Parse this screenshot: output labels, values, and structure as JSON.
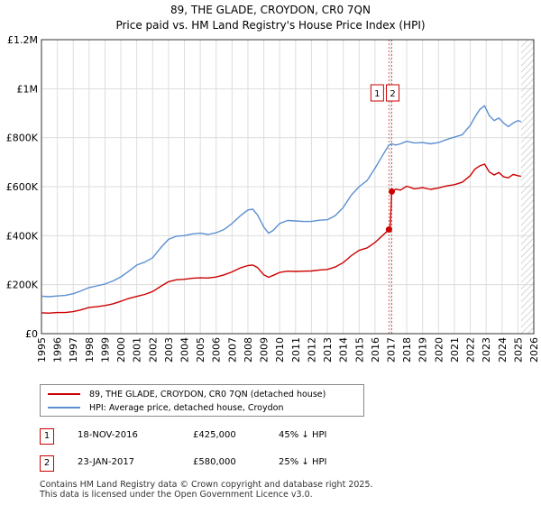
{
  "chart_data": {
    "type": "line",
    "title": "89, THE GLADE, CROYDON, CR0 7QN",
    "subtitle": "Price paid vs. HM Land Registry's House Price Index (HPI)",
    "xlim": [
      1995,
      2026
    ],
    "ylim": [
      0,
      1200000
    ],
    "x_ticks": [
      1995,
      1996,
      1997,
      1998,
      1999,
      2000,
      2001,
      2002,
      2003,
      2004,
      2005,
      2006,
      2007,
      2008,
      2009,
      2010,
      2011,
      2012,
      2013,
      2014,
      2015,
      2016,
      2017,
      2018,
      2019,
      2020,
      2021,
      2022,
      2023,
      2024,
      2025,
      2026
    ],
    "y_ticks": [
      {
        "value": 0,
        "label": "£0"
      },
      {
        "value": 200000,
        "label": "£200K"
      },
      {
        "value": 400000,
        "label": "£400K"
      },
      {
        "value": 600000,
        "label": "£600K"
      },
      {
        "value": 800000,
        "label": "£800K"
      },
      {
        "value": 1000000,
        "label": "£1M"
      },
      {
        "value": 1200000,
        "label": "£1.2M"
      }
    ],
    "grid": true,
    "hatch_from": 2025.2,
    "colors": {
      "property": "#cc0000",
      "hpi": "#5b8fd0",
      "sale_marker": "#e06060"
    },
    "series": [
      {
        "name": "89, THE GLADE, CROYDON, CR0 7QN (detached house)",
        "x": [
          1995.0,
          1995.5,
          1996.0,
          1996.5,
          1997.0,
          1997.5,
          1998.0,
          1998.5,
          1999.0,
          1999.5,
          2000.0,
          2000.5,
          2001.0,
          2001.5,
          2002.0,
          2002.5,
          2003.0,
          2003.5,
          2004.0,
          2004.5,
          2005.0,
          2005.5,
          2006.0,
          2006.5,
          2007.0,
          2007.5,
          2008.0,
          2008.3,
          2008.6,
          2009.0,
          2009.3,
          2009.6,
          2010.0,
          2010.5,
          2011.0,
          2011.5,
          2012.0,
          2012.5,
          2013.0,
          2013.5,
          2014.0,
          2014.5,
          2015.0,
          2015.5,
          2016.0,
          2016.5,
          2016.88,
          2016.95,
          2017.06,
          2017.3,
          2017.6,
          2018.0,
          2018.5,
          2019.0,
          2019.5,
          2020.0,
          2020.5,
          2021.0,
          2021.5,
          2022.0,
          2022.3,
          2022.6,
          2022.9,
          2023.2,
          2023.5,
          2023.8,
          2024.1,
          2024.4,
          2024.7,
          2025.0,
          2025.2
        ],
        "values": [
          85000,
          84000,
          86000,
          86000,
          90000,
          97000,
          107000,
          110000,
          115000,
          122000,
          132000,
          144000,
          152000,
          160000,
          172000,
          193000,
          212000,
          220000,
          222000,
          226000,
          228000,
          227000,
          231000,
          240000,
          252000,
          268000,
          278000,
          280000,
          270000,
          240000,
          230000,
          238000,
          250000,
          255000,
          254000,
          255000,
          256000,
          260000,
          262000,
          272000,
          290000,
          318000,
          340000,
          350000,
          372000,
          402000,
          425000,
          423000,
          580000,
          590000,
          586000,
          602000,
          591000,
          596000,
          589000,
          595000,
          603000,
          608000,
          618000,
          645000,
          672000,
          685000,
          692000,
          660000,
          648000,
          658000,
          640000,
          636000,
          650000,
          645000,
          642000
        ]
      },
      {
        "name": "HPI: Average price, detached house, Croydon",
        "x": [
          1995.0,
          1995.5,
          1996.0,
          1996.5,
          1997.0,
          1997.5,
          1998.0,
          1998.5,
          1999.0,
          1999.5,
          2000.0,
          2000.5,
          2001.0,
          2001.5,
          2002.0,
          2002.5,
          2003.0,
          2003.5,
          2004.0,
          2004.5,
          2005.0,
          2005.5,
          2006.0,
          2006.5,
          2007.0,
          2007.5,
          2008.0,
          2008.3,
          2008.6,
          2009.0,
          2009.3,
          2009.6,
          2010.0,
          2010.5,
          2011.0,
          2011.5,
          2012.0,
          2012.5,
          2013.0,
          2013.5,
          2014.0,
          2014.5,
          2015.0,
          2015.5,
          2016.0,
          2016.5,
          2016.88,
          2017.06,
          2017.3,
          2017.6,
          2018.0,
          2018.5,
          2019.0,
          2019.5,
          2020.0,
          2020.5,
          2021.0,
          2021.5,
          2022.0,
          2022.3,
          2022.6,
          2022.9,
          2023.2,
          2023.5,
          2023.8,
          2024.1,
          2024.4,
          2024.7,
          2025.0,
          2025.2
        ],
        "values": [
          153000,
          151000,
          154000,
          156000,
          163000,
          175000,
          188000,
          195000,
          203000,
          215000,
          232000,
          255000,
          280000,
          292000,
          310000,
          350000,
          385000,
          398000,
          400000,
          407000,
          410000,
          405000,
          412000,
          425000,
          450000,
          480000,
          505000,
          508000,
          485000,
          435000,
          410000,
          422000,
          450000,
          462000,
          460000,
          458000,
          458000,
          463000,
          465000,
          482000,
          515000,
          565000,
          600000,
          625000,
          675000,
          730000,
          770000,
          775000,
          770000,
          775000,
          785000,
          778000,
          780000,
          775000,
          780000,
          792000,
          802000,
          812000,
          850000,
          885000,
          915000,
          930000,
          890000,
          870000,
          880000,
          860000,
          845000,
          860000,
          870000,
          865000
        ]
      }
    ],
    "sales": [
      {
        "id": "1",
        "x": 2016.88,
        "value": 425000
      },
      {
        "id": "2",
        "x": 2017.06,
        "value": 580000
      }
    ]
  },
  "legend": {
    "property_label": "89, THE GLADE, CROYDON, CR0 7QN (detached house)",
    "hpi_label": "HPI: Average price, detached house, Croydon"
  },
  "sales_table": [
    {
      "id": "1",
      "date": "18-NOV-2016",
      "price": "£425,000",
      "hpi": "45% ↓ HPI"
    },
    {
      "id": "2",
      "date": "23-JAN-2017",
      "price": "£580,000",
      "hpi": "25% ↓ HPI"
    }
  ],
  "footer": {
    "line1": "Contains HM Land Registry data © Crown copyright and database right 2025.",
    "line2": "This data is licensed under the Open Government Licence v3.0."
  }
}
